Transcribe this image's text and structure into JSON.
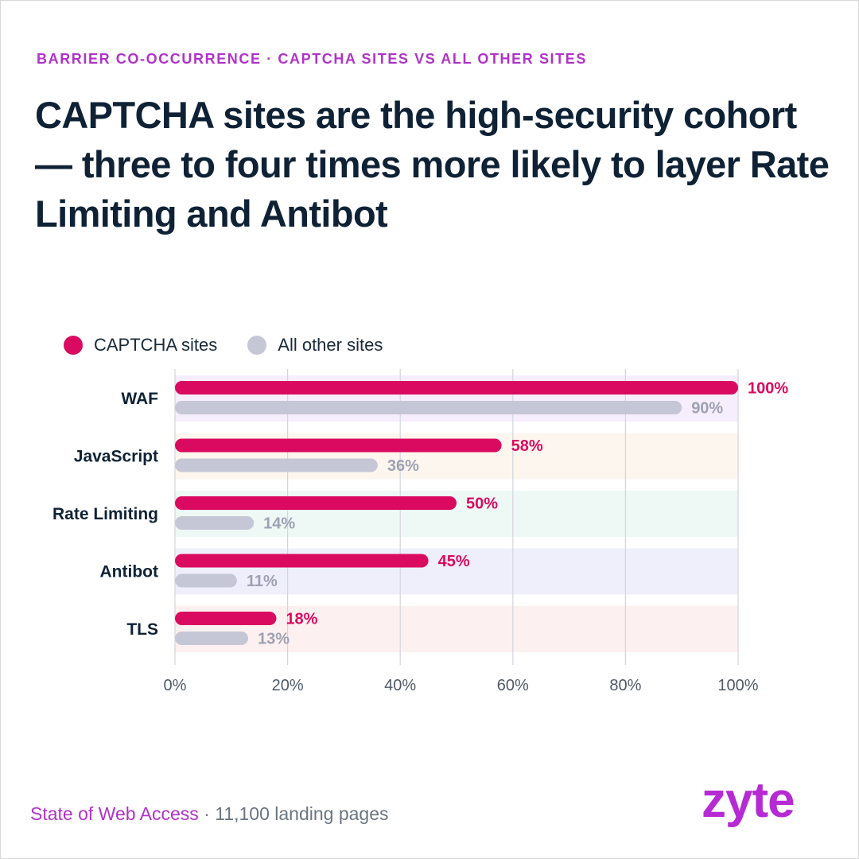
{
  "eyebrow": "BARRIER CO-OCCURRENCE · CAPTCHA SITES VS ALL OTHER SITES",
  "headline": "CAPTCHA sites are the high-security cohort — three to four times more likely to layer Rate Limiting and Antibot",
  "footer": {
    "source": "State of Web Access",
    "separator": " · ",
    "note": "11,100 landing pages"
  },
  "logo_text": "zyte",
  "colors": {
    "captcha": "#d90a5f",
    "other": "#c6c7d6",
    "captcha_label": "#d90a5f",
    "other_label": "#9ea1b3",
    "row_backgrounds": [
      "#f6eefc",
      "#fdf6ee",
      "#eef8f5",
      "#efeffb",
      "#fdf0f0"
    ]
  },
  "chart_data": {
    "type": "bar",
    "orientation": "horizontal",
    "categories": [
      "WAF",
      "JavaScript",
      "Rate Limiting",
      "Antibot",
      "TLS"
    ],
    "series": [
      {
        "name": "CAPTCHA sites",
        "values": [
          100,
          58,
          50,
          45,
          18
        ]
      },
      {
        "name": "All other sites",
        "values": [
          90,
          36,
          14,
          11,
          13
        ]
      }
    ],
    "data_labels": [
      [
        "100%",
        "58%",
        "50%",
        "45%",
        "18%"
      ],
      [
        "90%",
        "36%",
        "14%",
        "11%",
        "13%"
      ]
    ],
    "xlim": [
      0,
      100
    ],
    "xticks": [
      0,
      20,
      40,
      60,
      80,
      100
    ],
    "xtick_labels": [
      "0%",
      "20%",
      "40%",
      "60%",
      "80%",
      "100%"
    ],
    "grid": true,
    "legend_position": "top-left"
  }
}
